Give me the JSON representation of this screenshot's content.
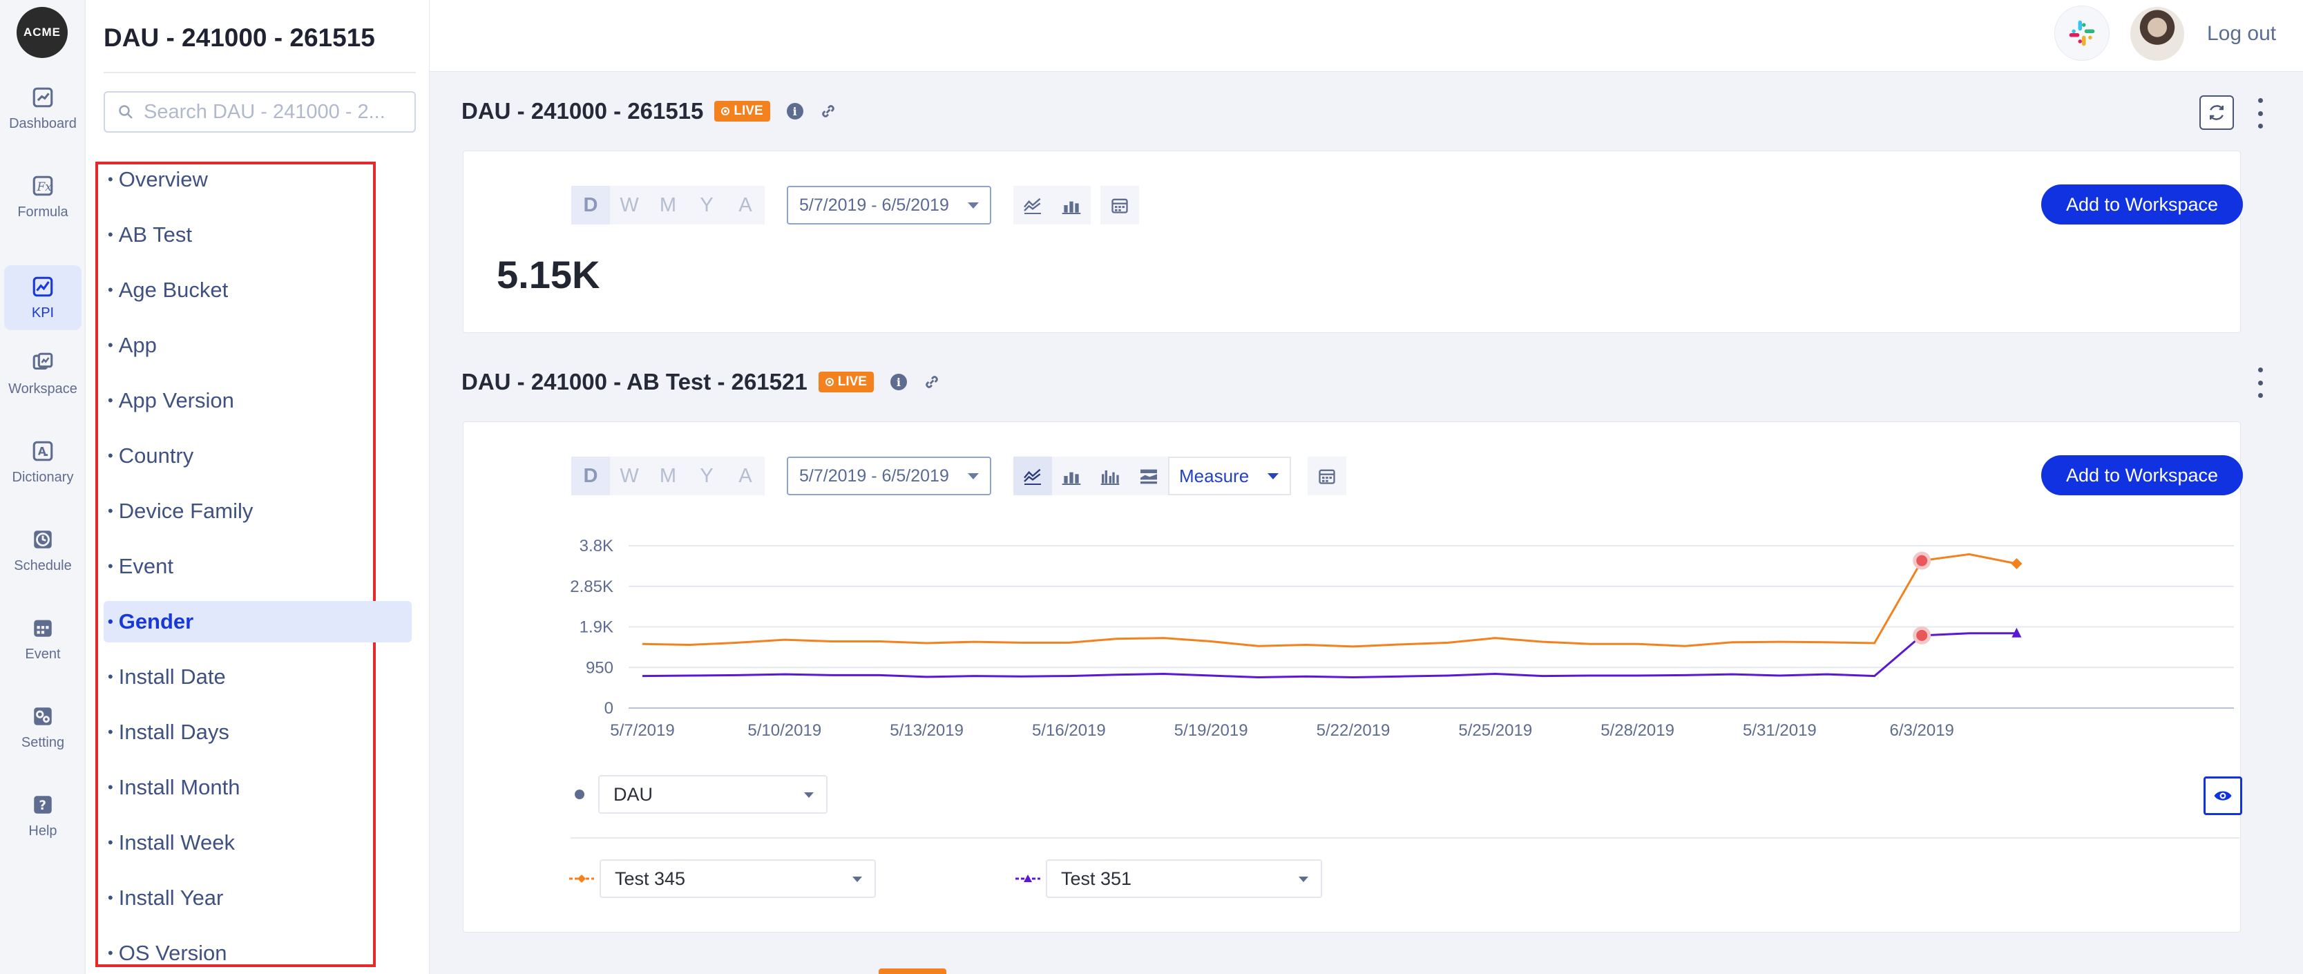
{
  "rail": {
    "logo": "ACME",
    "items": [
      {
        "label": "Dashboard",
        "icon": "dashboard-icon"
      },
      {
        "label": "Formula",
        "icon": "formula-icon"
      },
      {
        "label": "KPI",
        "icon": "kpi-icon",
        "active": true
      },
      {
        "label": "Workspace",
        "icon": "workspace-icon"
      },
      {
        "label": "Dictionary",
        "icon": "dictionary-icon"
      },
      {
        "label": "Schedule",
        "icon": "clock-icon"
      },
      {
        "label": "Event",
        "icon": "calendar-icon"
      },
      {
        "label": "Setting",
        "icon": "settings-icon"
      },
      {
        "label": "Help",
        "icon": "help-icon"
      }
    ]
  },
  "sidebar": {
    "title": "DAU - 241000 - 261515",
    "search_placeholder": "Search DAU - 241000 - 2...",
    "items": [
      {
        "label": "Overview"
      },
      {
        "label": "AB Test"
      },
      {
        "label": "Age Bucket"
      },
      {
        "label": "App"
      },
      {
        "label": "App Version"
      },
      {
        "label": "Country"
      },
      {
        "label": "Device Family"
      },
      {
        "label": "Event"
      },
      {
        "label": "Gender",
        "active": true
      },
      {
        "label": "Install Date"
      },
      {
        "label": "Install Days"
      },
      {
        "label": "Install Month"
      },
      {
        "label": "Install Week"
      },
      {
        "label": "Install Year"
      },
      {
        "label": "OS Version"
      }
    ]
  },
  "topbar": {
    "logout_label": "Log out"
  },
  "panel1": {
    "title": "DAU - 241000 - 261515",
    "live_label": "LIVE",
    "periods": [
      "D",
      "W",
      "M",
      "Y",
      "A"
    ],
    "selected_period": "D",
    "date_range": "5/7/2019 - 6/5/2019",
    "add_button": "Add to Workspace",
    "kpi_value": "5.15K"
  },
  "panel2": {
    "title": "DAU - 241000 - AB Test - 261521",
    "live_label": "LIVE",
    "periods": [
      "D",
      "W",
      "M",
      "Y",
      "A"
    ],
    "selected_period": "D",
    "date_range": "5/7/2019 - 6/5/2019",
    "measure_label": "Measure",
    "add_button": "Add to Workspace",
    "metric_select": "DAU",
    "series_selects": [
      "Test 345",
      "Test 351"
    ]
  },
  "chart_data": {
    "type": "line",
    "x": [
      "5/7/2019",
      "5/8/2019",
      "5/9/2019",
      "5/10/2019",
      "5/11/2019",
      "5/12/2019",
      "5/13/2019",
      "5/14/2019",
      "5/15/2019",
      "5/16/2019",
      "5/17/2019",
      "5/18/2019",
      "5/19/2019",
      "5/20/2019",
      "5/21/2019",
      "5/22/2019",
      "5/23/2019",
      "5/24/2019",
      "5/25/2019",
      "5/26/2019",
      "5/27/2019",
      "5/28/2019",
      "5/29/2019",
      "5/30/2019",
      "5/31/2019",
      "6/1/2019",
      "6/2/2019",
      "6/3/2019",
      "6/4/2019",
      "6/5/2019"
    ],
    "x_tick_labels": [
      "5/7/2019",
      "5/10/2019",
      "5/13/2019",
      "5/16/2019",
      "5/19/2019",
      "5/22/2019",
      "5/25/2019",
      "5/28/2019",
      "5/31/2019",
      "6/3/2019"
    ],
    "y_ticks": [
      0,
      950,
      1900,
      2850,
      3800
    ],
    "y_tick_labels": [
      "0",
      "950",
      "1.9K",
      "2.85K",
      "3.8K"
    ],
    "ylim": [
      0,
      3800
    ],
    "grid": true,
    "series": [
      {
        "name": "Test 345",
        "color": "#f3811e",
        "values": [
          1500,
          1480,
          1530,
          1600,
          1560,
          1560,
          1520,
          1550,
          1530,
          1530,
          1620,
          1640,
          1560,
          1450,
          1480,
          1440,
          1490,
          1530,
          1640,
          1550,
          1500,
          1500,
          1450,
          1540,
          1550,
          1540,
          1520,
          3450,
          3600,
          3380
        ]
      },
      {
        "name": "Test 351",
        "color": "#5a18d6",
        "values": [
          750,
          760,
          770,
          790,
          770,
          770,
          730,
          750,
          740,
          750,
          780,
          800,
          760,
          720,
          740,
          720,
          740,
          760,
          800,
          750,
          760,
          760,
          770,
          790,
          760,
          790,
          750,
          1700,
          1750,
          1750
        ]
      }
    ]
  },
  "colors": {
    "accent": "#1032e0",
    "live": "#f3811e",
    "highlight_box": "#e52a2a"
  }
}
